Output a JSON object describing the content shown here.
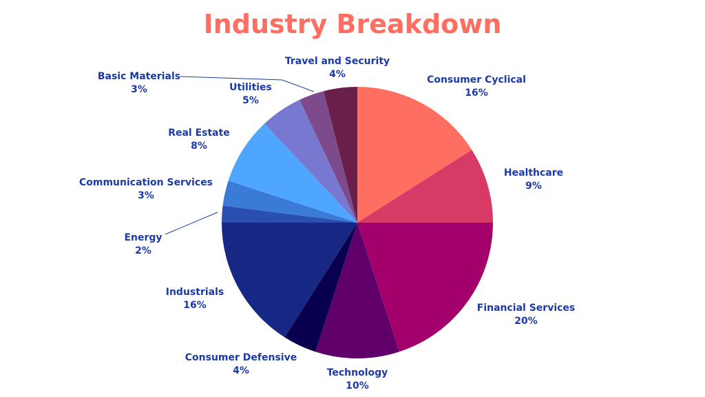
{
  "chart_data": {
    "type": "pie",
    "title": "Industry Breakdown",
    "categories": [
      "Consumer Cyclical",
      "Healthcare",
      "Financial Services",
      "Technology",
      "Consumer Defensive",
      "Industrials",
      "Energy",
      "Communication Services",
      "Real Estate",
      "Utilities",
      "Basic Materials",
      "Travel and Security"
    ],
    "values": [
      16,
      9,
      20,
      10,
      4,
      16,
      2,
      3,
      8,
      5,
      3,
      4
    ],
    "value_labels": [
      "16%",
      "9%",
      "20%",
      "10%",
      "4%",
      "16%",
      "2%",
      "3%",
      "8%",
      "5%",
      "3%",
      "4%"
    ],
    "colors": [
      "#ff6f61",
      "#d83a66",
      "#a3006b",
      "#62006b",
      "#0a0050",
      "#172884",
      "#2a4fb0",
      "#3a7bd8",
      "#4ea6ff",
      "#7878d0",
      "#7d4a8c",
      "#6a1f4a"
    ]
  }
}
